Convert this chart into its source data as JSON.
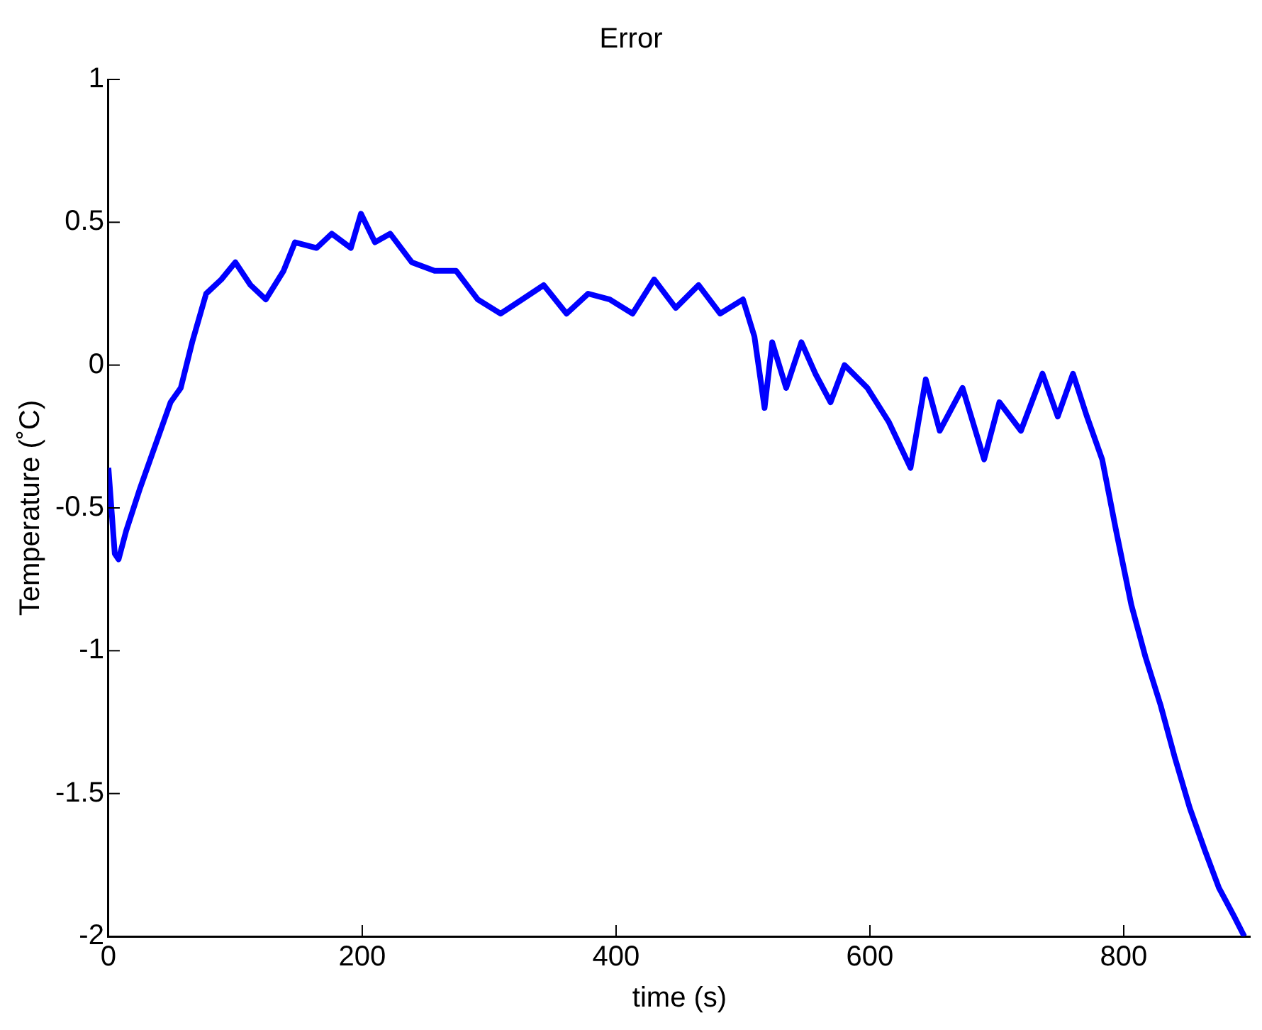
{
  "chart_data": {
    "type": "line",
    "title": "Error",
    "xlabel": "time (s)",
    "ylabel": "Temperature (˚C)",
    "xlim": [
      0,
      900
    ],
    "xticks": [
      0,
      200,
      400,
      600,
      800
    ],
    "ylim": [
      -2,
      1
    ],
    "yticks": [
      -2,
      -1.5,
      -1,
      -0.5,
      0,
      0.5,
      1
    ],
    "grid": false,
    "marker": "none",
    "line_style": "solid",
    "series": [
      {
        "color": "#0000ff",
        "x": [
          0,
          5,
          8,
          14,
          25,
          37,
          49,
          57,
          66,
          77,
          89,
          100,
          112,
          124,
          138,
          147,
          164,
          176,
          191,
          199,
          210,
          222,
          239,
          257,
          274,
          291,
          309,
          326,
          343,
          361,
          378,
          395,
          413,
          430,
          447,
          465,
          482,
          500,
          509,
          517,
          523,
          534,
          546,
          557,
          569,
          580,
          598,
          615,
          632,
          644,
          655,
          673,
          690,
          702,
          719,
          736,
          748,
          760,
          771,
          783,
          794,
          806,
          817,
          829,
          840,
          852,
          864,
          875,
          887,
          895
        ],
        "values": [
          -0.36,
          -0.66,
          -0.68,
          -0.58,
          -0.43,
          -0.28,
          -0.13,
          -0.08,
          0.08,
          0.25,
          0.3,
          0.36,
          0.28,
          0.23,
          0.33,
          0.43,
          0.41,
          0.46,
          0.41,
          0.53,
          0.43,
          0.46,
          0.36,
          0.33,
          0.33,
          0.23,
          0.18,
          0.23,
          0.28,
          0.18,
          0.25,
          0.23,
          0.18,
          0.3,
          0.2,
          0.28,
          0.18,
          0.23,
          0.1,
          -0.15,
          0.08,
          -0.08,
          0.08,
          -0.03,
          -0.13,
          0,
          -0.08,
          -0.2,
          -0.36,
          -0.05,
          -0.23,
          -0.08,
          -0.33,
          -0.13,
          -0.23,
          -0.03,
          -0.18,
          -0.03,
          -0.18,
          -0.33,
          -0.58,
          -0.84,
          -1.02,
          -1.19,
          -1.37,
          -1.55,
          -1.7,
          -1.83,
          -1.93,
          -2
        ]
      }
    ]
  }
}
